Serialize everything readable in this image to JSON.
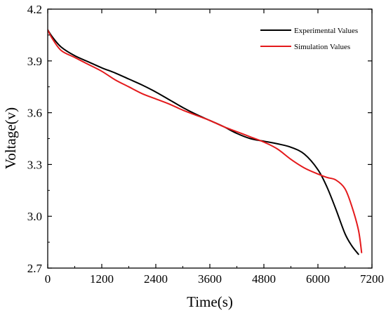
{
  "chart_data": {
    "type": "line",
    "title": "",
    "xlabel": "Time(s)",
    "ylabel": "Voltage(v)",
    "xlim": [
      0,
      7200
    ],
    "ylim": [
      2.7,
      4.2
    ],
    "xticks": [
      "0",
      "1200",
      "2400",
      "3600",
      "4800",
      "6000",
      "7200"
    ],
    "yticks": [
      "2.7",
      "3.0",
      "3.3",
      "3.6",
      "3.9",
      "4.2"
    ],
    "grid": false,
    "legend_position": "top-right",
    "series": [
      {
        "name": "Experimental Values",
        "color": "#000000",
        "x": [
          0,
          100,
          300,
          600,
          900,
          1200,
          1500,
          1800,
          2100,
          2400,
          2700,
          3000,
          3300,
          3600,
          3900,
          4200,
          4500,
          4800,
          5100,
          5400,
          5700,
          6000,
          6200,
          6400,
          6600,
          6750,
          6900
        ],
        "y": [
          4.08,
          4.04,
          3.98,
          3.93,
          3.895,
          3.86,
          3.83,
          3.795,
          3.76,
          3.72,
          3.675,
          3.63,
          3.59,
          3.555,
          3.52,
          3.48,
          3.45,
          3.435,
          3.42,
          3.4,
          3.36,
          3.27,
          3.17,
          3.04,
          2.9,
          2.83,
          2.78
        ]
      },
      {
        "name": "Simulation Values",
        "color": "#e41a1c",
        "x": [
          0,
          100,
          300,
          600,
          900,
          1200,
          1500,
          1800,
          2100,
          2400,
          2700,
          3000,
          3300,
          3600,
          3900,
          4200,
          4500,
          4800,
          5100,
          5400,
          5700,
          6000,
          6200,
          6400,
          6600,
          6750,
          6900,
          6970
        ],
        "y": [
          4.08,
          4.03,
          3.96,
          3.92,
          3.88,
          3.84,
          3.79,
          3.75,
          3.71,
          3.68,
          3.65,
          3.615,
          3.585,
          3.555,
          3.52,
          3.49,
          3.46,
          3.43,
          3.39,
          3.33,
          3.28,
          3.245,
          3.225,
          3.21,
          3.16,
          3.06,
          2.92,
          2.79
        ]
      }
    ]
  }
}
